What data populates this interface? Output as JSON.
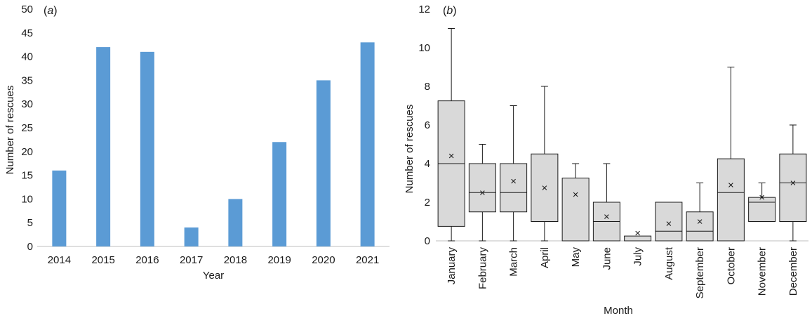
{
  "chart_data": [
    {
      "panel_label": "(a)",
      "type": "bar",
      "xlabel": "Year",
      "ylabel": "Number of rescues",
      "ylim": [
        0,
        50
      ],
      "yticks": [
        0,
        5,
        10,
        15,
        20,
        25,
        30,
        35,
        40,
        45,
        50
      ],
      "grid": false,
      "bar_color": "#5b9bd5",
      "categories": [
        "2014",
        "2015",
        "2016",
        "2017",
        "2018",
        "2019",
        "2020",
        "2021"
      ],
      "values": [
        16,
        42,
        41,
        4,
        10,
        22,
        35,
        43
      ]
    },
    {
      "panel_label": "(b)",
      "type": "box",
      "xlabel": "Month",
      "ylabel": "Number of rescues",
      "ylim": [
        0,
        12
      ],
      "yticks": [
        0,
        2,
        4,
        6,
        8,
        10,
        12
      ],
      "grid": false,
      "box_fill": "#d9d9d9",
      "box_stroke": "#1a1a1a",
      "mean_marker": "×",
      "categories": [
        "January",
        "February",
        "March",
        "April",
        "May",
        "June",
        "July",
        "August",
        "September",
        "October",
        "November",
        "December"
      ],
      "boxes": [
        {
          "min": 0,
          "q1": 0.75,
          "median": 4,
          "q3": 7.25,
          "max": 11,
          "mean": 4.4
        },
        {
          "min": 0,
          "q1": 1.5,
          "median": 2.5,
          "q3": 4,
          "max": 5,
          "mean": 2.5
        },
        {
          "min": 0,
          "q1": 1.5,
          "median": 2.5,
          "q3": 4,
          "max": 7,
          "mean": 3.1
        },
        {
          "min": 0,
          "q1": 1,
          "median": 1,
          "q3": 4.5,
          "max": 8,
          "mean": 2.75
        },
        {
          "min": 0,
          "q1": 0,
          "median": 0,
          "q3": 3.25,
          "max": 4,
          "mean": 2.4
        },
        {
          "min": 0,
          "q1": 0,
          "median": 1,
          "q3": 2,
          "max": 4,
          "mean": 1.25
        },
        {
          "min": 0,
          "q1": 0,
          "median": 0,
          "q3": 0.25,
          "max": 0.25,
          "mean": 0.4
        },
        {
          "min": 0,
          "q1": 0,
          "median": 0.5,
          "q3": 2,
          "max": 2,
          "mean": 0.9
        },
        {
          "min": 0,
          "q1": 0,
          "median": 0.5,
          "q3": 1.5,
          "max": 3,
          "mean": 1.0
        },
        {
          "min": 0,
          "q1": 0,
          "median": 2.5,
          "q3": 4.25,
          "max": 9,
          "mean": 2.9
        },
        {
          "min": 1,
          "q1": 1,
          "median": 2,
          "q3": 2.25,
          "max": 3,
          "mean": 2.25
        },
        {
          "min": 0,
          "q1": 1,
          "median": 3,
          "q3": 4.5,
          "max": 6,
          "mean": 3.0
        }
      ]
    }
  ]
}
